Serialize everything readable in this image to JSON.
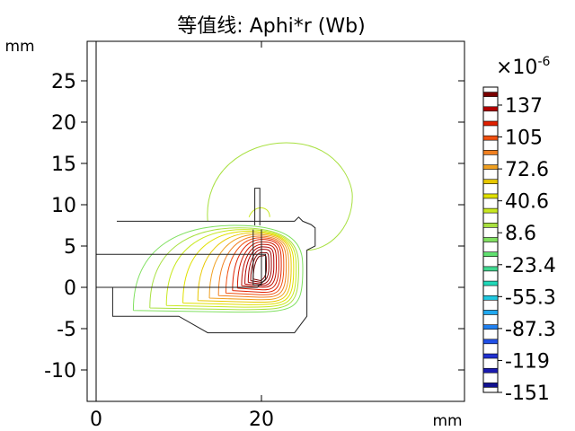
{
  "chart_data": {
    "type": "contour",
    "title": "等值线: Aphi*r (Wb)",
    "xlabel": "mm",
    "ylabel": "mm",
    "xlim": [
      -1,
      44
    ],
    "ylim": [
      -14,
      29
    ],
    "x_ticks": [
      0,
      20
    ],
    "y_ticks": [
      25,
      20,
      15,
      10,
      5,
      0,
      -5,
      -10
    ],
    "colorbar": {
      "multiplier": "×10",
      "exponent": "-6",
      "labels": [
        "137",
        "105",
        "72.6",
        "40.6",
        "8.6",
        "-23.4",
        "-55.3",
        "-87.3",
        "-119",
        "-151"
      ],
      "colors": [
        "#7a0000",
        "#b30000",
        "#e02000",
        "#f05010",
        "#f08020",
        "#f0a020",
        "#e8c800",
        "#e0e000",
        "#c8e820",
        "#a8e040",
        "#80e060",
        "#60e070",
        "#40d890",
        "#20d8b8",
        "#20c8e0",
        "#20a8f0",
        "#2080f0",
        "#2050e8",
        "#2030d0",
        "#1a1ab0",
        "#101090"
      ]
    },
    "geometry_outline": [
      [
        2.5,
        8
      ],
      [
        24,
        8
      ],
      [
        24.5,
        8.5
      ],
      [
        25,
        8
      ],
      [
        26,
        7.6
      ],
      [
        26.5,
        7.2
      ],
      [
        26.5,
        5
      ],
      [
        25.5,
        4.5
      ],
      [
        25.5,
        -3.5
      ],
      [
        24,
        -5.5
      ],
      [
        13.5,
        -5.5
      ],
      [
        10,
        -3.5
      ],
      [
        2,
        -3.5
      ],
      [
        2,
        0
      ]
    ],
    "inner_bar": [
      [
        0,
        0
      ],
      [
        19.5,
        0
      ],
      [
        20.5,
        1
      ],
      [
        20.5,
        4
      ],
      [
        0,
        4
      ]
    ],
    "pin": [
      [
        19.2,
        7.5
      ],
      [
        19.2,
        12
      ],
      [
        19.8,
        12
      ],
      [
        19.8,
        7.5
      ]
    ],
    "core_inner": [
      [
        19,
        7
      ],
      [
        19,
        0.3
      ],
      [
        20,
        0.3
      ],
      [
        20,
        7
      ]
    ]
  }
}
